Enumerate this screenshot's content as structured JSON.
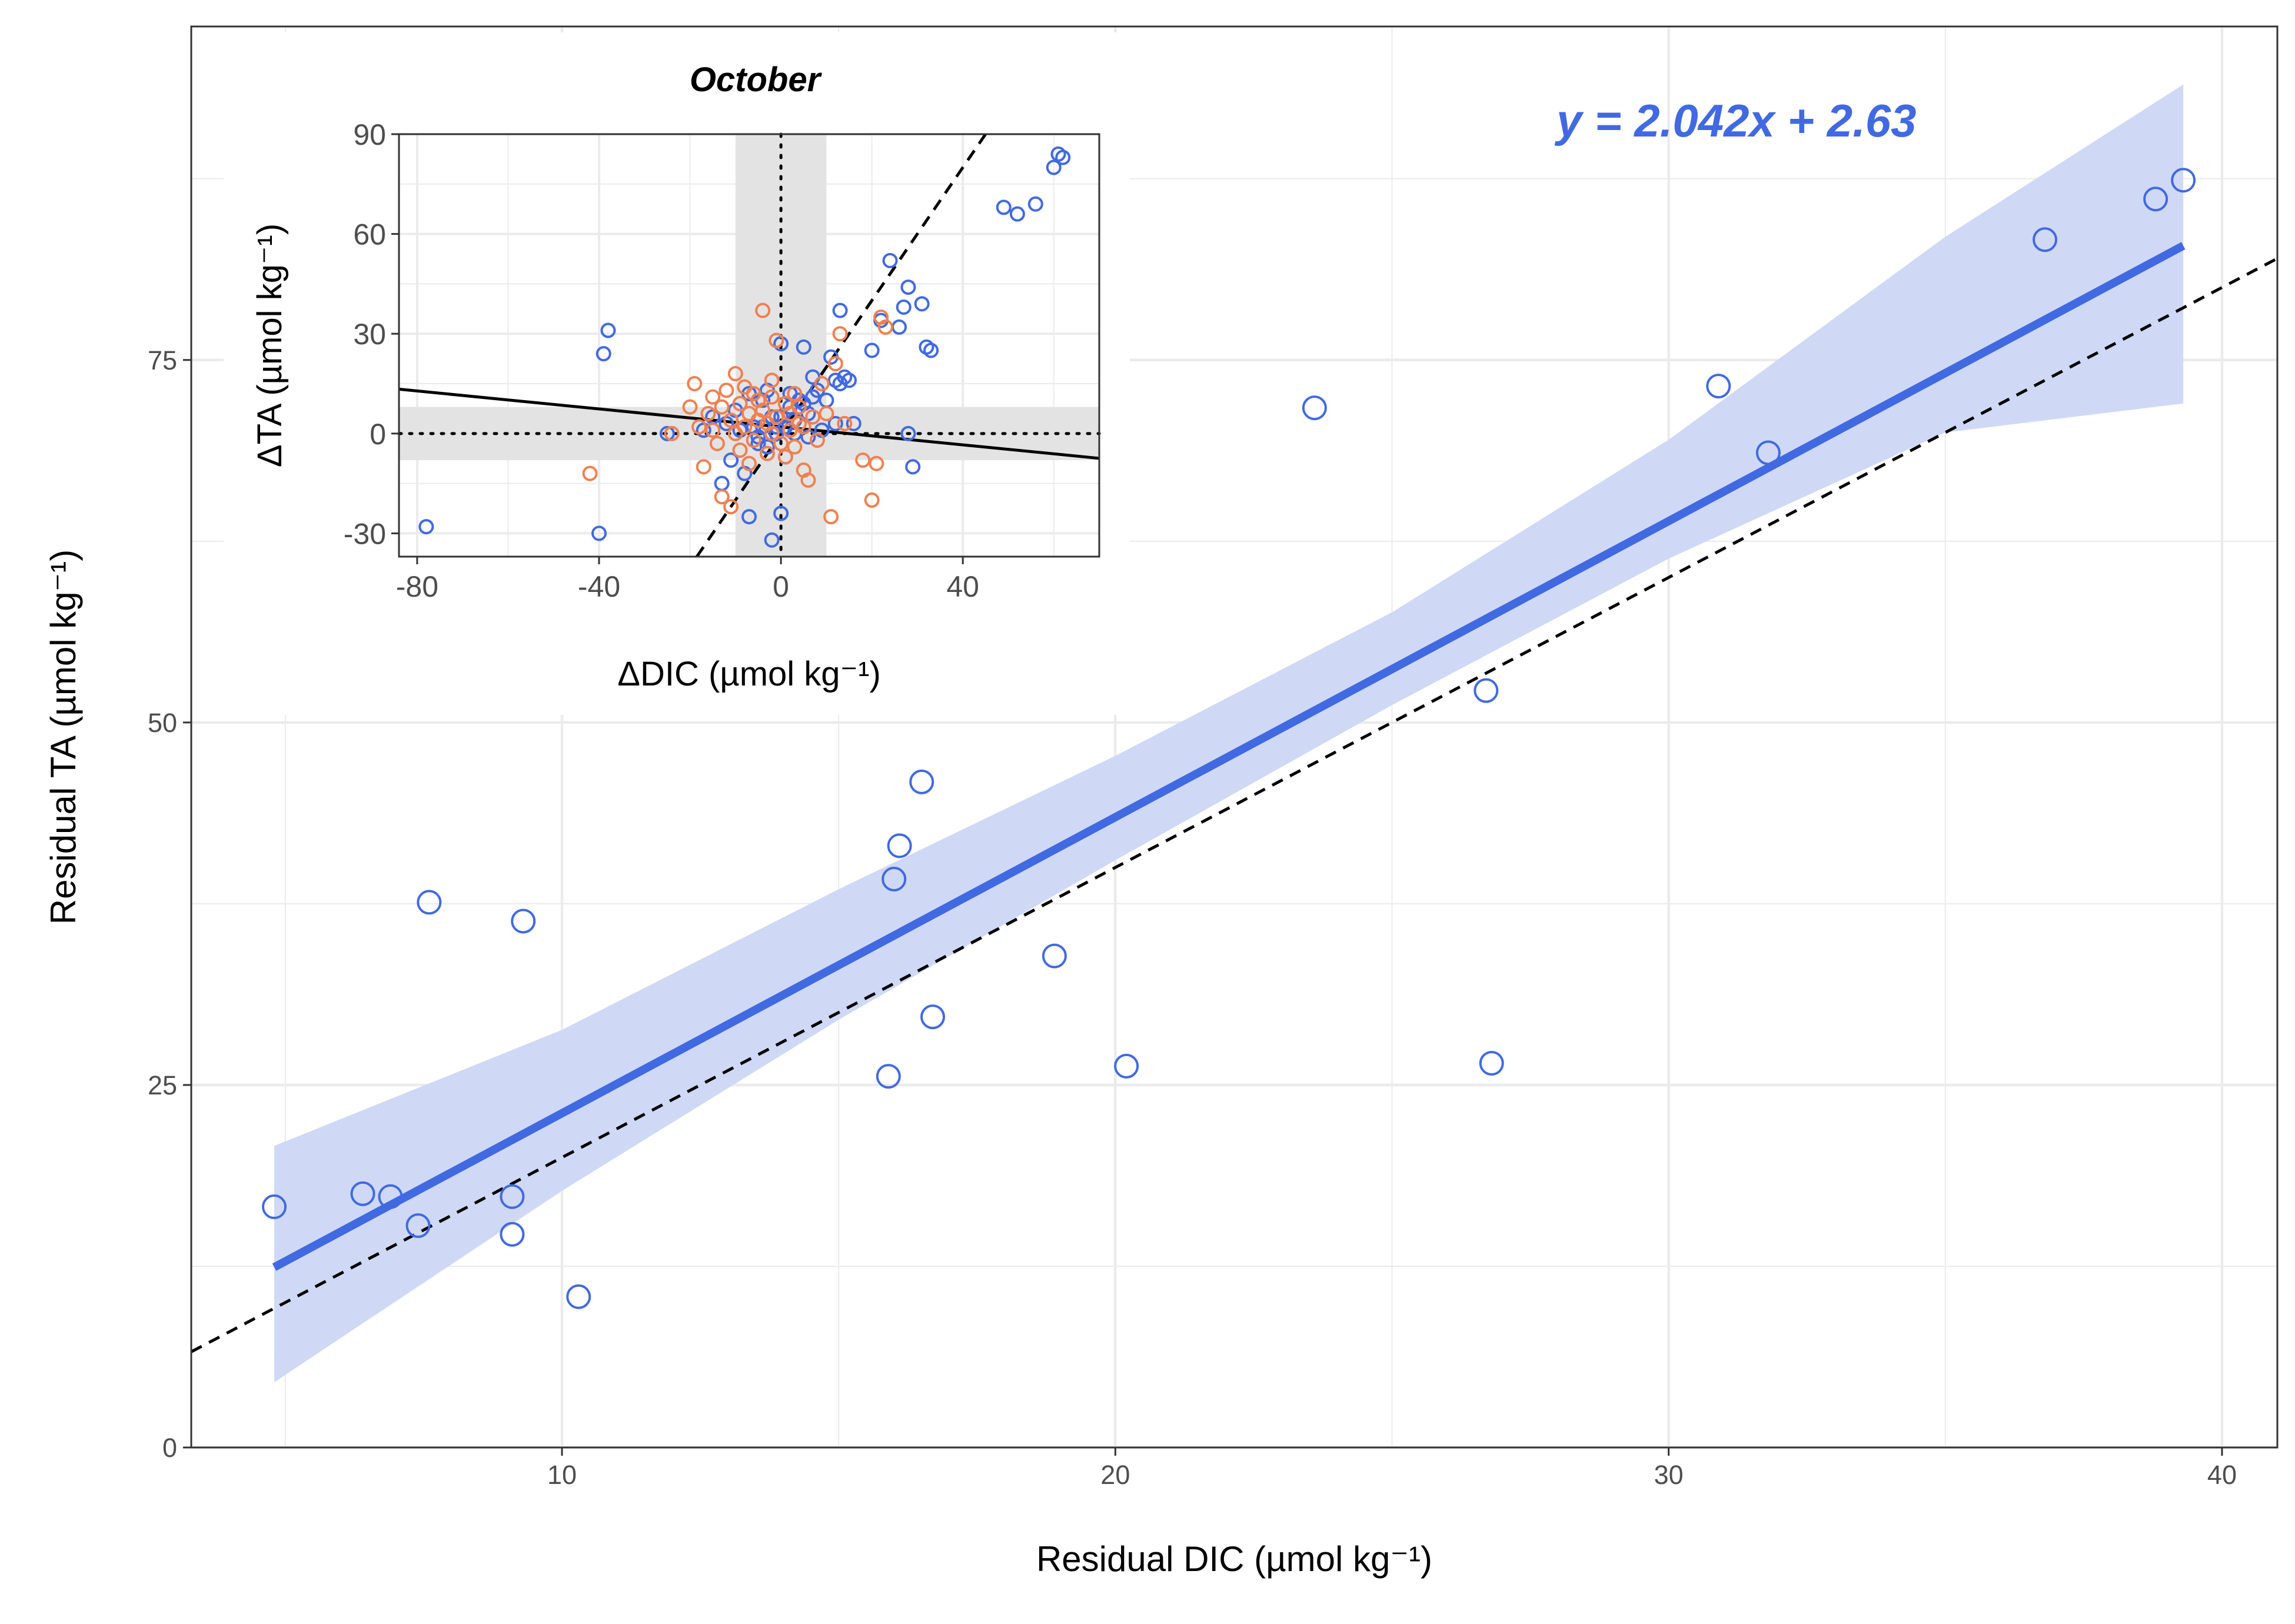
{
  "colors": {
    "blue": "#4169E1",
    "orange": "#F08050",
    "band": "#CFD9F6",
    "grid": "#EBEBEB",
    "shade": "#E3E3E3"
  },
  "chart_data": [
    {
      "type": "scatter",
      "xlabel": "Residual DIC (µmol kg⁻¹)",
      "ylabel": "Residual TA (µmol kg⁻¹)",
      "xlim": [
        3.3,
        41.0
      ],
      "ylim": [
        0,
        98
      ],
      "x_ticks": [
        10,
        20,
        30,
        40
      ],
      "y_ticks": [
        0,
        25,
        50,
        75
      ],
      "grid": true,
      "annotation": "y = 2.042x + 2.63",
      "regression": {
        "slope": 2.042,
        "intercept": 2.63,
        "x_range": [
          4.8,
          39.3
        ]
      },
      "reference_line": {
        "slope": 2.0,
        "intercept": 0,
        "style": "dashed"
      },
      "confidence_band": {
        "x": [
          4.8,
          10,
          15,
          20,
          25,
          30,
          35,
          39.3
        ],
        "lower": [
          4.5,
          17.7,
          29.5,
          40.5,
          51.2,
          61.3,
          70.0,
          72.0
        ],
        "upper": [
          20.8,
          28.8,
          38.5,
          47.7,
          57.6,
          69.5,
          83.5,
          94.0
        ]
      },
      "series": [
        {
          "x": [
            4.8,
            6.4,
            6.9,
            7.4,
            7.6,
            9.1,
            9.1,
            9.3,
            10.3,
            15.9,
            16.0,
            16.1,
            16.5,
            16.7,
            18.9,
            20.2,
            23.6,
            26.7,
            26.8,
            30.9,
            31.8,
            36.8,
            38.8,
            39.3
          ],
          "y": [
            16.6,
            17.5,
            17.3,
            15.3,
            37.6,
            17.3,
            14.7,
            36.3,
            10.4,
            25.6,
            39.2,
            41.5,
            45.9,
            29.7,
            33.9,
            26.3,
            71.7,
            52.2,
            26.5,
            73.2,
            68.6,
            83.3,
            86.1,
            87.4
          ]
        }
      ]
    },
    {
      "type": "scatter",
      "title": "October",
      "xlabel": "ΔDIC (µmol kg⁻¹)",
      "ylabel": "ΔTA (µmol kg⁻¹)",
      "xlim": [
        -84,
        70
      ],
      "ylim": [
        -37,
        90
      ],
      "x_ticks": [
        -80,
        -40,
        0,
        40
      ],
      "y_ticks": [
        -30,
        0,
        30,
        60,
        90
      ],
      "grid": true,
      "shaded_band_x": [
        -10,
        10
      ],
      "shaded_band_y": [
        -8,
        8
      ],
      "solid_line": {
        "slope": -0.135,
        "intercept": 2.0
      },
      "dashed_line": {
        "slope": 2.0,
        "intercept": 0
      },
      "series": [
        {
          "name": "",
          "color": "blue",
          "x": [
            -78,
            -40,
            -39,
            -38,
            -25,
            -17,
            -15,
            -13,
            -12,
            -11,
            -10,
            -9,
            -8,
            -7,
            -7,
            -6,
            -5,
            -5,
            -4,
            -4,
            -3,
            -3,
            -2,
            -2,
            -1,
            -1,
            0,
            0,
            0,
            1,
            1,
            2,
            2,
            3,
            3,
            4,
            5,
            5,
            6,
            6,
            7,
            7,
            8,
            9,
            10,
            11,
            12,
            12,
            13,
            13,
            14,
            15,
            16,
            20,
            22,
            24,
            26,
            27,
            28,
            28,
            29,
            31,
            32,
            33,
            49,
            52,
            56,
            60,
            61,
            62
          ],
          "y": [
            -28,
            -30,
            24,
            31,
            0,
            1,
            5,
            -15,
            3,
            -8,
            7,
            1,
            -12,
            12,
            -25,
            2,
            -1,
            -3,
            10,
            2,
            -4,
            13,
            -32,
            5,
            0,
            2,
            27,
            5,
            -24,
            -7,
            2,
            8,
            12,
            4,
            0,
            10,
            26,
            9,
            -1,
            6,
            17,
            11,
            13,
            1,
            10,
            23,
            16,
            3,
            15,
            37,
            17,
            16,
            3,
            25,
            34,
            52,
            32,
            38,
            44,
            0,
            -10,
            39,
            26,
            25,
            68,
            66,
            69,
            80,
            84,
            83
          ]
        },
        {
          "name": "",
          "color": "orange",
          "x": [
            -42,
            -24,
            -20,
            -19,
            -18,
            -17,
            -16,
            -15,
            -15,
            -14,
            -13,
            -13,
            -12,
            -11,
            -11,
            -10,
            -10,
            -9,
            -9,
            -8,
            -8,
            -7,
            -7,
            -6,
            -6,
            -5,
            -5,
            -4,
            -4,
            -3,
            -3,
            -2,
            -2,
            -2,
            -1,
            -1,
            0,
            1,
            1,
            2,
            2,
            3,
            3,
            4,
            4,
            5,
            5,
            6,
            7,
            8,
            9,
            10,
            11,
            12,
            13,
            14,
            18,
            20,
            21,
            22,
            23
          ],
          "y": [
            -12,
            0,
            8,
            15,
            2,
            -10,
            6,
            11,
            1,
            -3,
            8,
            -19,
            13,
            4,
            -22,
            18,
            0,
            9,
            -5,
            14,
            2,
            6,
            -9,
            12,
            -2,
            10,
            4,
            7,
            37,
            3,
            -6,
            11,
            0,
            16,
            5,
            28,
            -3,
            9,
            -7,
            6,
            1,
            12,
            -4,
            3,
            8,
            -11,
            2,
            -14,
            5,
            -2,
            15,
            6,
            -25,
            21,
            30,
            3,
            -8,
            -20,
            -9,
            35,
            32
          ]
        }
      ]
    }
  ]
}
